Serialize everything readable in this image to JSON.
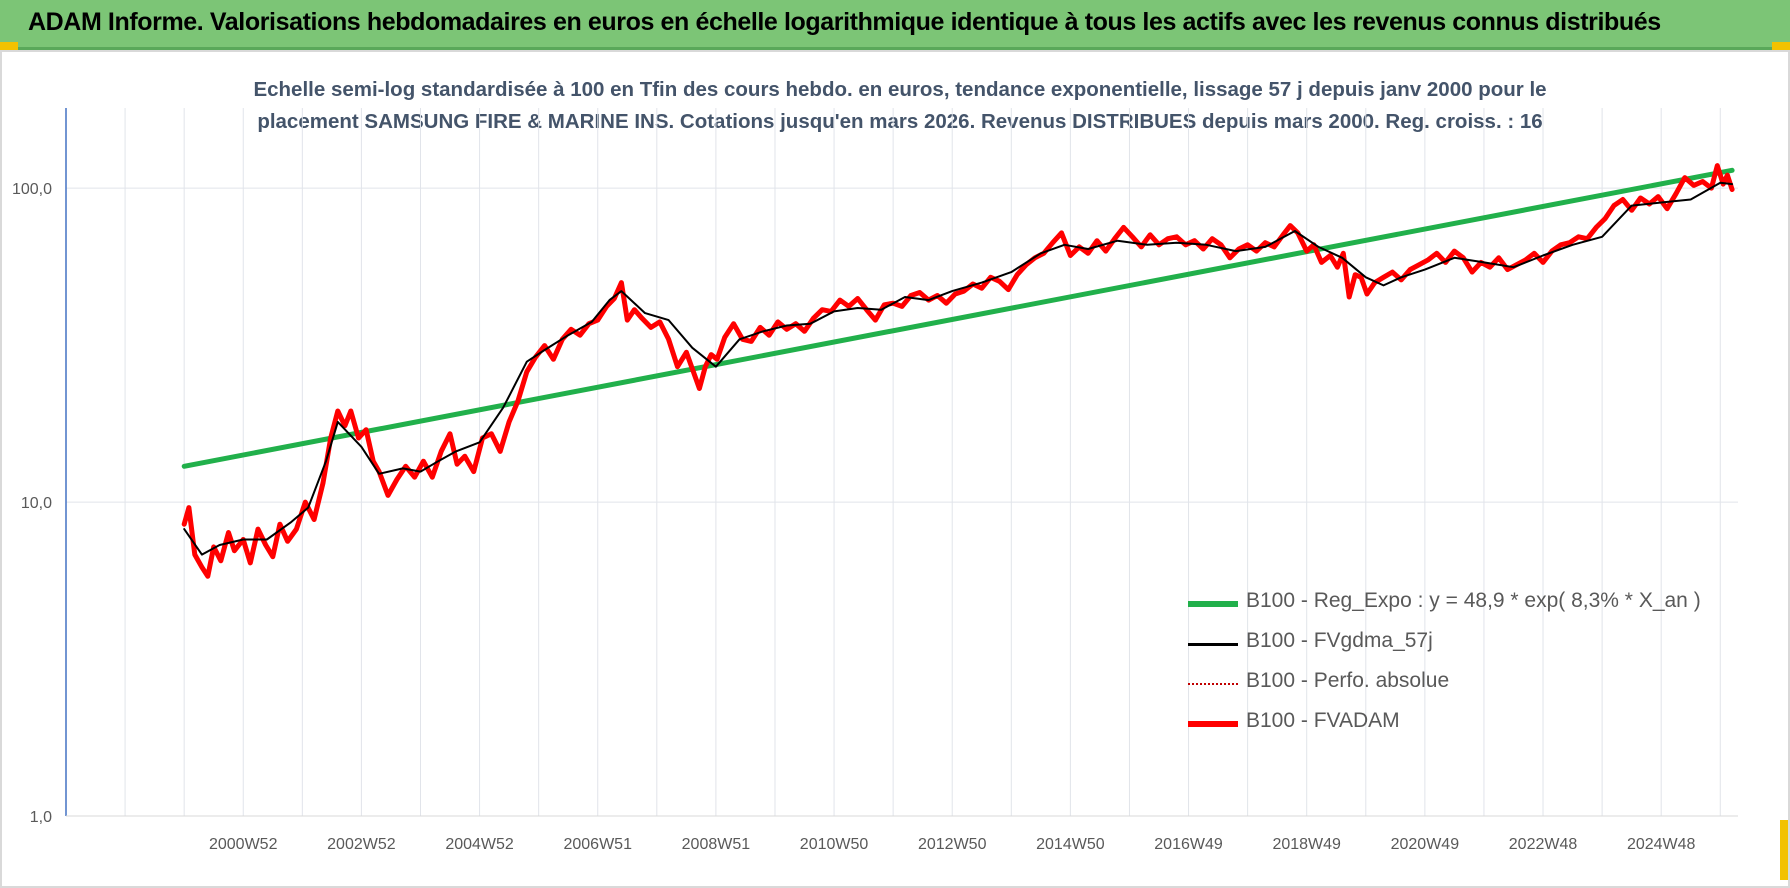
{
  "banner": {
    "title": "ADAM Informe. Valorisations hebdomadaires en euros en échelle logarithmique identique à tous les actifs avec les revenus connus distribués",
    "background": "#7cc576"
  },
  "chart_data": {
    "type": "line",
    "title_line1": "Echelle semi-log standardisée à 100 en Tfin des cours hebdo. en euros, tendance exponentielle, lissage 57 j depuis janv 2000 pour le",
    "title_line2": "placement SAMSUNG FIRE & MARINE INS. Cotations jusqu'en mars 2026. Revenus DISTRIBUES depuis mars 2000. Reg. croiss. : 16",
    "yscale": "log",
    "ylim": [
      1,
      180
    ],
    "y_ticks": [
      {
        "value": 1,
        "label": "1,0"
      },
      {
        "value": 10,
        "label": "10,0"
      },
      {
        "value": 100,
        "label": "100,0"
      }
    ],
    "xlim": [
      1998.0,
      2026.3
    ],
    "x_ticks": [
      {
        "value": 2001.0,
        "label": "2000W52"
      },
      {
        "value": 2003.0,
        "label": "2002W52"
      },
      {
        "value": 2005.0,
        "label": "2004W52"
      },
      {
        "value": 2007.0,
        "label": "2006W51"
      },
      {
        "value": 2009.0,
        "label": "2008W51"
      },
      {
        "value": 2011.0,
        "label": "2010W50"
      },
      {
        "value": 2013.0,
        "label": "2012W50"
      },
      {
        "value": 2015.0,
        "label": "2014W50"
      },
      {
        "value": 2017.0,
        "label": "2016W49"
      },
      {
        "value": 2019.0,
        "label": "2018W49"
      },
      {
        "value": 2021.0,
        "label": "2020W49"
      },
      {
        "value": 2023.0,
        "label": "2022W48"
      },
      {
        "value": 2025.0,
        "label": "2024W48"
      }
    ],
    "grid": "vertical",
    "legend_position": "bottom-right",
    "series": [
      {
        "name": "B100 - Reg_Expo : y = 48,9 * exp( 8,3% *  X_an )",
        "color": "#21b04b",
        "style": "solid-thick",
        "x": [
          2000.0,
          2026.2
        ],
        "y": [
          13.0,
          114.0
        ]
      },
      {
        "name": "B100 - FVgdma_57j",
        "color": "#000000",
        "style": "solid",
        "x": [
          2000.0,
          2000.3,
          2000.6,
          2001.0,
          2001.4,
          2001.8,
          2002.1,
          2002.4,
          2002.6,
          2003.0,
          2003.3,
          2003.7,
          2004.0,
          2004.3,
          2004.6,
          2005.0,
          2005.4,
          2005.8,
          2006.1,
          2006.5,
          2006.9,
          2007.2,
          2007.4,
          2007.8,
          2008.2,
          2008.6,
          2009.0,
          2009.4,
          2009.8,
          2010.2,
          2010.6,
          2011.0,
          2011.4,
          2011.8,
          2012.2,
          2012.6,
          2013.0,
          2013.5,
          2014.0,
          2014.5,
          2014.9,
          2015.3,
          2015.8,
          2016.3,
          2016.8,
          2017.3,
          2017.8,
          2018.3,
          2018.8,
          2019.2,
          2019.6,
          2020.0,
          2020.3,
          2020.6,
          2021.0,
          2021.5,
          2022.0,
          2022.5,
          2023.0,
          2023.5,
          2024.0,
          2024.5,
          2025.0,
          2025.5,
          2026.0,
          2026.2
        ],
        "y": [
          8.2,
          6.8,
          7.3,
          7.6,
          7.6,
          8.6,
          9.6,
          13.5,
          18.0,
          15.0,
          12.3,
          12.8,
          12.5,
          13.5,
          14.5,
          15.5,
          20.0,
          28.0,
          30.5,
          34.0,
          37.5,
          44.0,
          47.0,
          40.0,
          38.0,
          31.0,
          27.0,
          33.0,
          35.0,
          36.5,
          37.0,
          40.5,
          41.5,
          41.0,
          45.0,
          44.0,
          47.0,
          50.0,
          54.0,
          62.0,
          66.0,
          64.0,
          68.0,
          66.0,
          67.0,
          66.0,
          63.0,
          65.0,
          73.0,
          65.0,
          60.0,
          52.0,
          49.0,
          52.0,
          55.0,
          60.0,
          58.0,
          56.0,
          61.0,
          66.0,
          70.0,
          88.0,
          90.0,
          92.0,
          104.0,
          103.0
        ]
      },
      {
        "name": "B100 - Perfo. absolue",
        "color": "#c00000",
        "style": "dotted",
        "x": [],
        "y": []
      },
      {
        "name": "B100 - FVADAM",
        "color": "#ff0000",
        "style": "solid-thick",
        "x": [
          2000.0,
          2000.08,
          2000.18,
          2000.3,
          2000.4,
          2000.5,
          2000.62,
          2000.75,
          2000.85,
          2001.0,
          2001.12,
          2001.25,
          2001.38,
          2001.5,
          2001.62,
          2001.75,
          2001.9,
          2002.05,
          2002.2,
          2002.35,
          2002.48,
          2002.6,
          2002.72,
          2002.82,
          2002.95,
          2003.08,
          2003.2,
          2003.3,
          2003.45,
          2003.6,
          2003.75,
          2003.9,
          2004.05,
          2004.2,
          2004.35,
          2004.5,
          2004.62,
          2004.75,
          2004.9,
          2005.05,
          2005.2,
          2005.35,
          2005.5,
          2005.65,
          2005.8,
          2005.95,
          2006.1,
          2006.25,
          2006.4,
          2006.55,
          2006.7,
          2006.85,
          2007.0,
          2007.15,
          2007.28,
          2007.4,
          2007.5,
          2007.62,
          2007.75,
          2007.9,
          2008.05,
          2008.2,
          2008.35,
          2008.5,
          2008.62,
          2008.72,
          2008.82,
          2008.92,
          2009.02,
          2009.15,
          2009.3,
          2009.45,
          2009.6,
          2009.75,
          2009.9,
          2010.05,
          2010.2,
          2010.35,
          2010.5,
          2010.65,
          2010.8,
          2010.95,
          2011.1,
          2011.25,
          2011.4,
          2011.55,
          2011.7,
          2011.85,
          2012.0,
          2012.15,
          2012.3,
          2012.45,
          2012.6,
          2012.75,
          2012.9,
          2013.05,
          2013.2,
          2013.35,
          2013.5,
          2013.65,
          2013.8,
          2013.95,
          2014.1,
          2014.25,
          2014.4,
          2014.55,
          2014.7,
          2014.85,
          2015.0,
          2015.15,
          2015.3,
          2015.45,
          2015.6,
          2015.75,
          2015.9,
          2016.05,
          2016.2,
          2016.35,
          2016.5,
          2016.65,
          2016.8,
          2016.95,
          2017.1,
          2017.25,
          2017.4,
          2017.55,
          2017.7,
          2017.85,
          2018.0,
          2018.15,
          2018.3,
          2018.45,
          2018.6,
          2018.72,
          2018.85,
          2019.0,
          2019.12,
          2019.25,
          2019.4,
          2019.52,
          2019.62,
          2019.72,
          2019.82,
          2019.92,
          2020.02,
          2020.15,
          2020.3,
          2020.45,
          2020.6,
          2020.75,
          2020.9,
          2021.05,
          2021.2,
          2021.35,
          2021.5,
          2021.65,
          2021.8,
          2021.95,
          2022.1,
          2022.25,
          2022.4,
          2022.55,
          2022.7,
          2022.85,
          2023.0,
          2023.15,
          2023.3,
          2023.45,
          2023.6,
          2023.75,
          2023.9,
          2024.05,
          2024.2,
          2024.35,
          2024.5,
          2024.65,
          2024.8,
          2024.95,
          2025.1,
          2025.25,
          2025.4,
          2025.55,
          2025.7,
          2025.85,
          2025.95,
          2026.05,
          2026.12,
          2026.2
        ],
        "y": [
          8.5,
          9.6,
          6.8,
          6.2,
          5.8,
          7.2,
          6.5,
          8.0,
          7.0,
          7.6,
          6.4,
          8.2,
          7.3,
          6.7,
          8.5,
          7.5,
          8.2,
          10.0,
          8.8,
          11.5,
          16.0,
          19.5,
          17.5,
          19.5,
          16.0,
          17.0,
          13.5,
          12.5,
          10.5,
          11.8,
          13.0,
          12.0,
          13.5,
          12.0,
          14.5,
          16.5,
          13.2,
          14.0,
          12.5,
          16.0,
          16.5,
          14.5,
          18.0,
          21.0,
          26.0,
          29.0,
          31.5,
          28.5,
          33.0,
          35.5,
          34.0,
          37.0,
          38.0,
          42.0,
          44.5,
          50.0,
          38.0,
          41.0,
          38.5,
          36.0,
          37.5,
          33.0,
          27.0,
          30.0,
          26.0,
          23.0,
          27.0,
          29.5,
          28.5,
          33.5,
          37.0,
          33.0,
          32.5,
          36.0,
          34.0,
          37.5,
          35.5,
          37.0,
          35.0,
          38.5,
          41.0,
          40.5,
          44.0,
          42.0,
          44.5,
          41.0,
          38.0,
          42.5,
          43.0,
          42.0,
          45.5,
          46.5,
          44.0,
          45.5,
          43.0,
          46.0,
          47.0,
          49.5,
          48.0,
          52.0,
          50.5,
          47.5,
          53.0,
          57.0,
          60.0,
          62.0,
          67.0,
          72.0,
          61.0,
          65.0,
          62.0,
          68.0,
          63.0,
          69.0,
          75.0,
          70.0,
          65.0,
          71.0,
          66.0,
          69.0,
          70.0,
          66.0,
          68.0,
          64.0,
          69.0,
          66.0,
          60.0,
          64.0,
          66.0,
          63.0,
          67.0,
          65.0,
          71.0,
          76.0,
          72.0,
          63.0,
          66.0,
          58.0,
          61.0,
          56.0,
          62.0,
          45.0,
          53.0,
          52.0,
          46.0,
          50.0,
          52.0,
          54.0,
          51.0,
          55.0,
          57.0,
          59.0,
          62.0,
          58.0,
          63.0,
          60.0,
          54.0,
          58.0,
          56.0,
          60.0,
          55.0,
          57.0,
          59.0,
          62.0,
          58.0,
          63.0,
          66.0,
          67.0,
          70.0,
          69.0,
          75.0,
          80.0,
          88.0,
          92.0,
          85.0,
          93.0,
          89.0,
          94.0,
          86.0,
          96.0,
          108.0,
          102.0,
          105.0,
          100.0,
          118.0,
          103.0,
          110.0,
          99.0
        ]
      }
    ]
  }
}
